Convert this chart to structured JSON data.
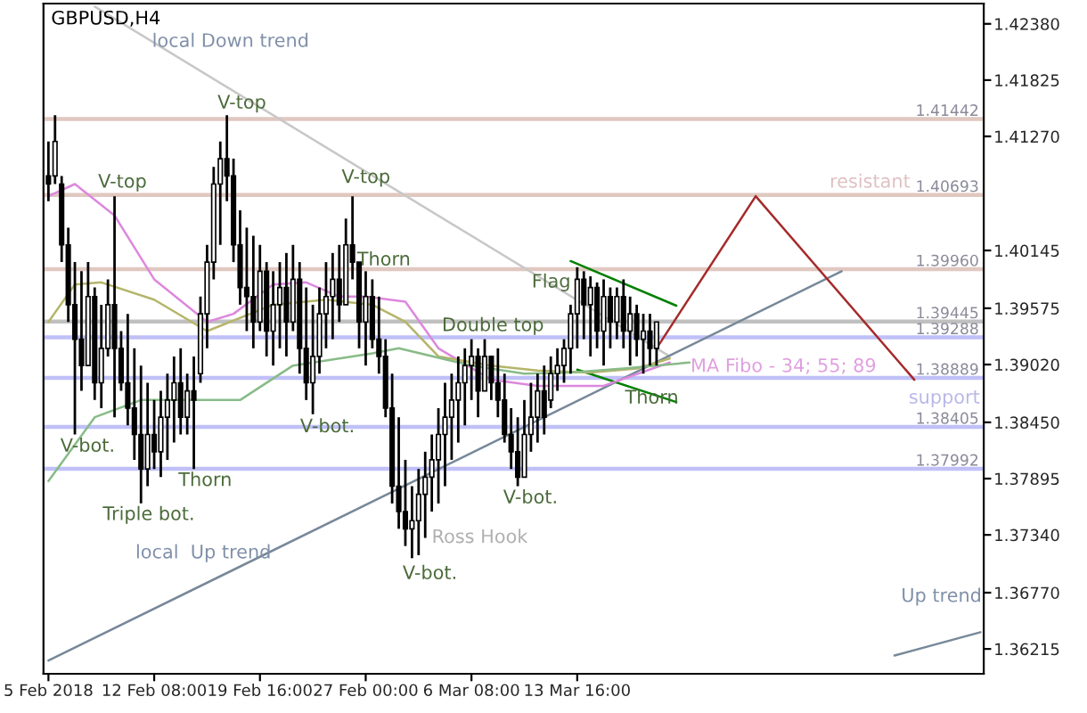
{
  "chart_data": {
    "type": "candlestick",
    "title": "GBPUSD,H4",
    "categories": [
      "5 Feb 2018",
      null,
      null,
      null,
      null,
      null,
      null,
      null,
      null,
      null,
      null,
      null,
      null,
      null,
      null,
      null,
      "12 Feb 08:00",
      null,
      null,
      null,
      null,
      null,
      null,
      null,
      null,
      null,
      null,
      null,
      null,
      null,
      null,
      null,
      "19 Feb 16:00",
      null,
      null,
      null,
      null,
      null,
      null,
      null,
      null,
      null,
      null,
      null,
      null,
      null,
      null,
      null,
      "27 Feb 00:00",
      null,
      null,
      null,
      null,
      null,
      null,
      null,
      null,
      null,
      null,
      null,
      null,
      null,
      null,
      null,
      "6 Mar 08:00",
      null,
      null,
      null,
      null,
      null,
      null,
      null,
      null,
      null,
      null,
      null,
      null,
      null,
      null,
      null,
      "13 Mar 16:00",
      null,
      null,
      null,
      null,
      null,
      null,
      null,
      null,
      null,
      null,
      null,
      null,
      null,
      null,
      null,
      null,
      null,
      null,
      null,
      null,
      null,
      null,
      null,
      null,
      null,
      null,
      null,
      null,
      null,
      null,
      null,
      null,
      null,
      null,
      null,
      null,
      null,
      null,
      null,
      null,
      null,
      null,
      null,
      null,
      null,
      null,
      null,
      null,
      null,
      null,
      null,
      null,
      null,
      null,
      null,
      null,
      null,
      null,
      null,
      null,
      null
    ],
    "ohlc": [
      [
        1.4088,
        1.4122,
        1.4063,
        1.408
      ],
      [
        1.4088,
        1.4148,
        1.408,
        1.4122
      ],
      [
        1.408,
        1.4088,
        1.4003,
        1.402
      ],
      [
        1.402,
        1.4037,
        1.3944,
        1.3961
      ],
      [
        1.3961,
        1.4003,
        1.3833,
        1.3927
      ],
      [
        1.3927,
        1.3994,
        1.3876,
        1.3901
      ],
      [
        1.3901,
        1.4003,
        1.3901,
        1.3969
      ],
      [
        1.3969,
        1.3978,
        1.3867,
        1.3884
      ],
      [
        1.3884,
        1.3961,
        1.3859,
        1.3918
      ],
      [
        1.3918,
        1.3986,
        1.391,
        1.3961
      ],
      [
        1.3961,
        1.4068,
        1.385,
        1.3918
      ],
      [
        1.3918,
        1.3935,
        1.3876,
        1.3884
      ],
      [
        1.3884,
        1.3952,
        1.3842,
        1.3859
      ],
      [
        1.3859,
        1.3918,
        1.3808,
        1.3833
      ],
      [
        1.3833,
        1.3901,
        1.3765,
        1.3799
      ],
      [
        1.3799,
        1.3884,
        1.3782,
        1.3833
      ],
      [
        1.3833,
        1.3867,
        1.3799,
        1.3816
      ],
      [
        1.3816,
        1.3876,
        1.3791,
        1.385
      ],
      [
        1.385,
        1.3893,
        1.3808,
        1.3867
      ],
      [
        1.3867,
        1.391,
        1.3825,
        1.3884
      ],
      [
        1.3884,
        1.3918,
        1.3833,
        1.385
      ],
      [
        1.385,
        1.3893,
        1.3833,
        1.3876
      ],
      [
        1.3876,
        1.391,
        1.3799,
        1.3867
      ],
      [
        1.3893,
        1.3969,
        1.3884,
        1.3952
      ],
      [
        1.3952,
        1.402,
        1.3918,
        1.4003
      ],
      [
        1.4003,
        1.4097,
        1.3986,
        1.408
      ],
      [
        1.408,
        1.4122,
        1.402,
        1.4105
      ],
      [
        1.4105,
        1.4148,
        1.4063,
        1.4088
      ],
      [
        1.4088,
        1.4105,
        1.4003,
        1.402
      ],
      [
        1.402,
        1.4054,
        1.3961,
        1.3978
      ],
      [
        1.3978,
        1.4037,
        1.3935,
        1.3969
      ],
      [
        1.3969,
        1.4029,
        1.3918,
        1.3944
      ],
      [
        1.3944,
        1.402,
        1.3935,
        1.3994
      ],
      [
        1.3994,
        1.4003,
        1.391,
        1.3935
      ],
      [
        1.3935,
        1.3994,
        1.3901,
        1.3961
      ],
      [
        1.3961,
        1.4003,
        1.3918,
        1.3978
      ],
      [
        1.3978,
        1.4012,
        1.391,
        1.3944
      ],
      [
        1.3944,
        1.402,
        1.3935,
        1.3986
      ],
      [
        1.3986,
        1.4003,
        1.3893,
        1.3918
      ],
      [
        1.3918,
        1.3978,
        1.3867,
        1.3884
      ],
      [
        1.3884,
        1.3961,
        1.3853,
        1.391
      ],
      [
        1.391,
        1.3978,
        1.3893,
        1.3952
      ],
      [
        1.3952,
        1.4003,
        1.3918,
        1.3969
      ],
      [
        1.3969,
        1.4012,
        1.3927,
        1.3986
      ],
      [
        1.3986,
        1.402,
        1.3944,
        1.3961
      ],
      [
        1.3961,
        1.4046,
        1.3961,
        1.402
      ],
      [
        1.402,
        1.4068,
        1.3986,
        1.4003
      ],
      [
        1.4003,
        1.4003,
        1.3918,
        1.3944
      ],
      [
        1.3944,
        1.3994,
        1.3901,
        1.3969
      ],
      [
        1.3969,
        1.3986,
        1.3918,
        1.3927
      ],
      [
        1.3927,
        1.3969,
        1.3893,
        1.391
      ],
      [
        1.391,
        1.3927,
        1.385,
        1.3859
      ],
      [
        1.3859,
        1.3893,
        1.3765,
        1.3782
      ],
      [
        1.3782,
        1.385,
        1.374,
        1.3757
      ],
      [
        1.3757,
        1.3808,
        1.3723,
        1.374
      ],
      [
        1.374,
        1.3782,
        1.3711,
        1.3748
      ],
      [
        1.3748,
        1.3799,
        1.3714,
        1.3774
      ],
      [
        1.3774,
        1.3816,
        1.3731,
        1.3791
      ],
      [
        1.3791,
        1.3833,
        1.3757,
        1.3808
      ],
      [
        1.3808,
        1.3859,
        1.3765,
        1.3833
      ],
      [
        1.3833,
        1.3884,
        1.3782,
        1.385
      ],
      [
        1.385,
        1.3893,
        1.3808,
        1.3867
      ],
      [
        1.3867,
        1.391,
        1.3825,
        1.3884
      ],
      [
        1.3884,
        1.3918,
        1.3842,
        1.3901
      ],
      [
        1.3901,
        1.3927,
        1.3867,
        1.391
      ],
      [
        1.391,
        1.3918,
        1.385,
        1.3876
      ],
      [
        1.3876,
        1.3927,
        1.3876,
        1.391
      ],
      [
        1.391,
        1.391,
        1.3867,
        1.3884
      ],
      [
        1.3884,
        1.3918,
        1.385,
        1.3867
      ],
      [
        1.3867,
        1.3893,
        1.3825,
        1.3833
      ],
      [
        1.3833,
        1.3859,
        1.3799,
        1.3816
      ],
      [
        1.3816,
        1.385,
        1.3782,
        1.3791
      ],
      [
        1.3791,
        1.3867,
        1.3791,
        1.3833
      ],
      [
        1.3833,
        1.3884,
        1.3816,
        1.385
      ],
      [
        1.385,
        1.3893,
        1.3825,
        1.3876
      ],
      [
        1.3876,
        1.3901,
        1.3833,
        1.385
      ],
      [
        1.3867,
        1.391,
        1.3859,
        1.3893
      ],
      [
        1.3893,
        1.3918,
        1.3876,
        1.3901
      ],
      [
        1.3901,
        1.3927,
        1.3884,
        1.3918
      ],
      [
        1.3918,
        1.3961,
        1.3893,
        1.3952
      ],
      [
        1.3952,
        1.3998,
        1.3918,
        1.3986
      ],
      [
        1.3986,
        1.3994,
        1.3927,
        1.3961
      ],
      [
        1.3961,
        1.3989,
        1.391,
        1.3978
      ],
      [
        1.3978,
        1.3983,
        1.3918,
        1.3935
      ],
      [
        1.3935,
        1.3986,
        1.3901,
        1.3969
      ],
      [
        1.3969,
        1.3978,
        1.3918,
        1.3944
      ],
      [
        1.3944,
        1.3978,
        1.3927,
        1.3969
      ],
      [
        1.3969,
        1.3986,
        1.3918,
        1.3935
      ],
      [
        1.3935,
        1.3969,
        1.3901,
        1.3952
      ],
      [
        1.3952,
        1.3961,
        1.391,
        1.3927
      ],
      [
        1.3927,
        1.3952,
        1.3893,
        1.3935
      ],
      [
        1.3935,
        1.3952,
        1.3901,
        1.3918
      ],
      [
        1.3918,
        1.3944,
        1.3901,
        1.3944
      ],
      null,
      null,
      null,
      null,
      null,
      null,
      null,
      null,
      null,
      null,
      null,
      null,
      null,
      null,
      null,
      null,
      null,
      null,
      null,
      null,
      null,
      null,
      null,
      null,
      null,
      null,
      null,
      null,
      null,
      null,
      null,
      null,
      null,
      null,
      null,
      null,
      null,
      null,
      null,
      null,
      null,
      null,
      null,
      null,
      null,
      null,
      null,
      null,
      null
    ],
    "series": [
      {
        "type": "line",
        "color": "#c8c8c8",
        "values": [
          null,
          null,
          null,
          null,
          null,
          null,
          null,
          1.4255,
          null,
          null,
          null,
          null,
          null,
          null,
          null,
          null,
          null,
          null,
          null,
          null,
          null,
          null,
          null,
          null,
          null,
          null,
          null,
          null,
          null,
          null,
          null,
          null,
          null,
          null,
          null,
          null,
          null,
          null,
          null,
          null,
          null,
          null,
          null,
          null,
          null,
          null,
          null,
          null,
          null,
          null,
          null,
          null,
          null,
          null,
          null,
          null,
          null,
          null,
          null,
          null,
          null,
          null,
          null,
          null,
          null,
          null,
          null,
          null,
          null,
          null,
          null,
          null,
          null,
          null,
          null,
          null,
          null,
          null,
          null,
          null,
          null,
          null,
          null,
          null,
          null,
          null,
          null,
          null,
          null,
          null,
          null,
          null,
          null,
          null,
          1.391,
          null,
          null,
          null,
          null,
          null,
          null,
          null,
          null,
          null,
          null,
          null,
          null,
          null,
          null,
          null,
          null,
          null,
          null,
          null,
          null,
          null,
          null,
          null,
          null,
          null,
          null,
          null,
          null,
          null,
          null,
          null,
          null,
          null,
          null,
          null,
          null,
          null,
          null,
          null,
          null,
          null,
          null,
          null,
          null,
          null,
          null,
          null
        ]
      },
      {
        "type": "line",
        "color": "#778899",
        "values": [
          1.361,
          null,
          null,
          null,
          null,
          null,
          null,
          null,
          null,
          null,
          null,
          null,
          null,
          null,
          null,
          null,
          null,
          null,
          null,
          null,
          null,
          null,
          null,
          null,
          null,
          null,
          null,
          null,
          null,
          null,
          null,
          null,
          null,
          null,
          null,
          null,
          null,
          null,
          null,
          null,
          null,
          null,
          null,
          null,
          null,
          null,
          null,
          null,
          null,
          null,
          null,
          null,
          null,
          null,
          null,
          null,
          null,
          null,
          null,
          null,
          null,
          null,
          null,
          null,
          null,
          null,
          null,
          null,
          null,
          null,
          null,
          null,
          null,
          null,
          null,
          null,
          null,
          null,
          null,
          null,
          null,
          null,
          null,
          null,
          null,
          null,
          null,
          null,
          null,
          null,
          null,
          null,
          null,
          null,
          null,
          null,
          null,
          null,
          null,
          null,
          null,
          null,
          null,
          null,
          null,
          null,
          null,
          null,
          null,
          null,
          null,
          null,
          null,
          null,
          null,
          null,
          null,
          null,
          null,
          null,
          1.3994,
          null,
          null,
          null,
          null,
          null,
          null,
          null,
          null,
          null,
          null,
          null,
          null,
          null,
          null,
          null,
          null,
          null,
          null,
          null,
          null,
          null
        ]
      },
      {
        "type": "line",
        "color": "#778899",
        "values": [
          null,
          null,
          null,
          null,
          null,
          null,
          null,
          null,
          null,
          null,
          null,
          null,
          null,
          null,
          null,
          null,
          null,
          null,
          null,
          null,
          null,
          null,
          null,
          null,
          null,
          null,
          null,
          null,
          null,
          null,
          null,
          null,
          null,
          null,
          null,
          null,
          null,
          null,
          null,
          null,
          null,
          null,
          null,
          null,
          null,
          null,
          null,
          null,
          null,
          null,
          null,
          null,
          null,
          null,
          null,
          null,
          null,
          null,
          null,
          null,
          null,
          null,
          null,
          null,
          null,
          null,
          null,
          null,
          null,
          null,
          null,
          null,
          null,
          null,
          null,
          null,
          null,
          null,
          null,
          null,
          null,
          null,
          null,
          null,
          null,
          null,
          null,
          null,
          null,
          null,
          null,
          null,
          null,
          null,
          null,
          null,
          null,
          null,
          null,
          null,
          null,
          null,
          null,
          null,
          null,
          null,
          null,
          null,
          null,
          null,
          null,
          null,
          null,
          null,
          null,
          null,
          null,
          null,
          null,
          null,
          null,
          null,
          null,
          null,
          null,
          null,
          null,
          null,
          1.3615,
          null,
          null,
          null,
          null,
          null,
          null,
          null,
          null,
          null,
          null,
          null,
          null,
          1.3638
        ]
      },
      {
        "type": "line",
        "color": "#008000",
        "values": [
          null,
          null,
          null,
          null,
          null,
          null,
          null,
          null,
          null,
          null,
          null,
          null,
          null,
          null,
          null,
          null,
          null,
          null,
          null,
          null,
          null,
          null,
          null,
          null,
          null,
          null,
          null,
          null,
          null,
          null,
          null,
          null,
          null,
          null,
          null,
          null,
          null,
          null,
          null,
          null,
          null,
          null,
          null,
          null,
          null,
          null,
          null,
          null,
          null,
          null,
          null,
          null,
          null,
          null,
          null,
          null,
          null,
          null,
          null,
          null,
          null,
          null,
          null,
          null,
          null,
          null,
          null,
          null,
          null,
          null,
          null,
          null,
          null,
          null,
          null,
          null,
          null,
          null,
          null,
          1.4004,
          null,
          null,
          null,
          null,
          null,
          null,
          null,
          null,
          null,
          null,
          null,
          null,
          null,
          null,
          null,
          1.396,
          null,
          null,
          null,
          null,
          null,
          null,
          null,
          null,
          null,
          null,
          null,
          null,
          null,
          null,
          null,
          null,
          null,
          null,
          null,
          null,
          null,
          null,
          null,
          null,
          null,
          null,
          null,
          null,
          null,
          null,
          null,
          null,
          null,
          null,
          null,
          null,
          null,
          null,
          null,
          null,
          null,
          null,
          null,
          null,
          null,
          null
        ]
      },
      {
        "type": "line",
        "color": "#008000",
        "values": [
          null,
          null,
          null,
          null,
          null,
          null,
          null,
          null,
          null,
          null,
          null,
          null,
          null,
          null,
          null,
          null,
          null,
          null,
          null,
          null,
          null,
          null,
          null,
          null,
          null,
          null,
          null,
          null,
          null,
          null,
          null,
          null,
          null,
          null,
          null,
          null,
          null,
          null,
          null,
          null,
          null,
          null,
          null,
          null,
          null,
          null,
          null,
          null,
          null,
          null,
          null,
          null,
          null,
          null,
          null,
          null,
          null,
          null,
          null,
          null,
          null,
          null,
          null,
          null,
          null,
          null,
          null,
          null,
          null,
          null,
          null,
          null,
          null,
          null,
          null,
          null,
          null,
          null,
          null,
          null,
          1.3897,
          null,
          null,
          null,
          null,
          null,
          null,
          null,
          null,
          null,
          null,
          null,
          null,
          null,
          null,
          1.3865,
          null,
          null,
          null,
          null,
          null,
          null,
          null,
          null,
          null,
          null,
          null,
          null,
          null,
          null,
          null,
          null,
          null,
          null,
          null,
          null,
          null,
          null,
          null,
          null,
          null,
          null,
          null,
          null,
          null,
          null,
          null,
          null,
          null,
          null,
          null,
          null,
          null,
          null,
          null,
          null,
          null,
          null,
          null,
          null,
          null,
          null
        ]
      },
      {
        "type": "line",
        "color": "#a52a2a",
        "values": [
          null,
          null,
          null,
          null,
          null,
          null,
          null,
          null,
          null,
          null,
          null,
          null,
          null,
          null,
          null,
          null,
          null,
          null,
          null,
          null,
          null,
          null,
          null,
          null,
          null,
          null,
          null,
          null,
          null,
          null,
          null,
          null,
          null,
          null,
          null,
          null,
          null,
          null,
          null,
          null,
          null,
          null,
          null,
          null,
          null,
          null,
          null,
          null,
          null,
          null,
          null,
          null,
          null,
          null,
          null,
          null,
          null,
          null,
          null,
          null,
          null,
          null,
          null,
          null,
          null,
          null,
          null,
          null,
          null,
          null,
          null,
          null,
          null,
          null,
          null,
          null,
          null,
          null,
          null,
          null,
          null,
          null,
          null,
          null,
          null,
          null,
          null,
          null,
          null,
          null,
          null,
          null,
          1.3918,
          null,
          null,
          null,
          null,
          null,
          null,
          null,
          null,
          null,
          null,
          null,
          null,
          null,
          null,
          1.4068,
          null,
          null,
          null,
          null,
          null,
          null,
          null,
          null,
          null,
          null,
          null,
          null,
          null,
          null,
          null,
          null,
          null,
          null,
          null,
          null,
          null,
          null,
          null,
          1.3887,
          null,
          null,
          null,
          null,
          null,
          null,
          null,
          null,
          null,
          null
        ]
      },
      {
        "type": "line",
        "color": "#dd88dd",
        "values": [
          1.4068,
          null,
          null,
          null,
          1.408,
          null,
          null,
          null,
          null,
          null,
          1.4049,
          null,
          null,
          null,
          null,
          null,
          1.3986,
          null,
          null,
          null,
          null,
          null,
          null,
          null,
          1.3944,
          null,
          null,
          null,
          1.3952,
          null,
          null,
          null,
          null,
          null,
          1.3981,
          null,
          null,
          null,
          null,
          1.3983,
          null,
          null,
          null,
          null,
          1.3969,
          null,
          null,
          null,
          1.3969,
          null,
          null,
          null,
          null,
          null,
          1.3964,
          null,
          null,
          null,
          null,
          1.3918,
          null,
          null,
          null,
          null,
          null,
          null,
          null,
          1.3887,
          null,
          null,
          null,
          null,
          null,
          null,
          1.3881,
          null,
          null,
          null,
          null,
          null,
          null,
          null,
          null,
          null,
          1.3881,
          null,
          null,
          null,
          null,
          null,
          null,
          null,
          null,
          null,
          1.3904,
          null,
          null,
          null,
          null,
          null,
          null,
          null,
          null,
          null,
          null,
          null,
          null,
          null,
          null,
          null,
          null,
          null,
          null,
          null,
          null,
          null,
          null,
          null,
          null,
          null,
          null,
          null,
          null,
          null,
          null,
          null,
          null,
          null,
          null,
          null,
          null,
          null,
          null,
          null,
          null,
          null,
          null,
          null,
          null,
          null,
          null,
          null
        ]
      },
      {
        "type": "line",
        "color": "#b5b56a",
        "values": [
          1.3944,
          null,
          null,
          null,
          1.3981,
          null,
          null,
          null,
          1.3983,
          null,
          null,
          null,
          null,
          null,
          null,
          null,
          1.3966,
          null,
          null,
          null,
          null,
          null,
          null,
          null,
          1.3935,
          null,
          null,
          null,
          null,
          null,
          null,
          null,
          null,
          null,
          1.3961,
          null,
          null,
          null,
          null,
          null,
          null,
          null,
          1.3966,
          null,
          null,
          null,
          null,
          null,
          null,
          1.3961,
          null,
          null,
          null,
          null,
          1.3944,
          null,
          null,
          null,
          null,
          1.391,
          null,
          null,
          null,
          null,
          null,
          null,
          null,
          1.3901,
          null,
          null,
          null,
          null,
          null,
          null,
          1.3896,
          null,
          null,
          null,
          null,
          null,
          null,
          null,
          1.3894,
          null,
          null,
          null,
          null,
          null,
          null,
          1.3898,
          null,
          null,
          null,
          null,
          1.3908,
          null,
          null,
          null,
          null,
          null,
          null,
          null,
          null,
          null,
          null,
          null,
          null,
          null,
          null,
          null,
          null,
          null,
          null,
          null,
          null,
          null,
          null,
          null,
          null,
          null,
          null,
          null,
          null,
          null,
          null,
          null,
          null,
          null,
          null,
          null,
          null,
          null,
          null,
          null,
          null,
          null,
          null,
          null,
          null,
          null,
          null,
          null
        ]
      },
      {
        "type": "line",
        "color": "#88bb88",
        "values": [
          1.3787,
          null,
          null,
          null,
          null,
          null,
          null,
          1.385,
          null,
          null,
          null,
          null,
          null,
          null,
          1.3867,
          null,
          null,
          null,
          null,
          null,
          null,
          null,
          null,
          null,
          null,
          null,
          null,
          null,
          null,
          1.3867,
          null,
          null,
          null,
          null,
          null,
          null,
          null,
          1.3901,
          null,
          null,
          null,
          null,
          null,
          null,
          null,
          null,
          null,
          null,
          null,
          1.3913,
          null,
          null,
          null,
          1.3918,
          null,
          null,
          null,
          null,
          null,
          null,
          null,
          null,
          null,
          null,
          1.3901,
          null,
          null,
          null,
          null,
          null,
          null,
          null,
          1.3893,
          null,
          null,
          null,
          null,
          null,
          null,
          1.3894,
          null,
          null,
          null,
          null,
          null,
          null,
          null,
          1.3898,
          null,
          null,
          null,
          null,
          null,
          null,
          null,
          null,
          null,
          1.3904,
          null,
          null,
          null,
          null,
          null,
          null,
          null,
          null,
          null,
          null,
          null,
          null,
          null,
          null,
          null,
          null,
          null,
          null,
          null,
          null,
          null,
          null,
          null,
          null,
          null,
          null,
          null,
          null,
          null,
          null,
          null,
          null,
          null,
          null,
          null,
          null,
          null,
          null,
          null,
          null,
          null,
          null,
          null,
          null
        ]
      }
    ],
    "ref_lines": [
      {
        "axis": "y",
        "value": 1.41442,
        "label": "1.41442",
        "color": "#e0c8c0"
      },
      {
        "axis": "y",
        "value": 1.40693,
        "label": "1.40693",
        "color": "#e0c8c0"
      },
      {
        "axis": "y",
        "value": 1.3996,
        "label": "1.39960",
        "color": "#e0c8c0"
      },
      {
        "axis": "y",
        "value": 1.39445,
        "label": "1.39445",
        "color": "#c0c0c0"
      },
      {
        "axis": "y",
        "value": 1.39288,
        "label": "1.39288",
        "color": "#c0c0f8"
      },
      {
        "axis": "y",
        "value": 1.38889,
        "label": "1.38889",
        "color": "#c0c0f8"
      },
      {
        "axis": "y",
        "value": 1.38405,
        "label": "1.38405",
        "color": "#c0c0f8"
      },
      {
        "axis": "y",
        "value": 1.37992,
        "label": "1.37992",
        "color": "#c0c0f8"
      }
    ],
    "annotations": [
      "local Down trend",
      "V-top",
      "V-top",
      "V-top",
      "Thorn",
      "Flag",
      "Double top",
      "V-bot.",
      "Thorn",
      "Triple bot.",
      "V-bot.",
      "local  Up trend",
      "V-bot.",
      "Ross Hook",
      "V-bot.",
      "Thorn",
      "MA Fibo - 34; 55; 89",
      "support",
      "resistant",
      "Up trend"
    ],
    "ylim": [
      1.3597,
      1.4258
    ],
    "yticks": [
      {
        "value": 1.4238,
        "label": "1.42380"
      },
      {
        "value": 1.41825,
        "label": "1.41825"
      },
      {
        "value": 1.4127,
        "label": "1.41270"
      },
      {
        "value": 1.40145,
        "label": "1.40145"
      },
      {
        "value": 1.39575,
        "label": "1.39575"
      },
      {
        "value": 1.3902,
        "label": "1.39020"
      },
      {
        "value": 1.3845,
        "label": "1.38450"
      },
      {
        "value": 1.37895,
        "label": "1.37895"
      },
      {
        "value": 1.3734,
        "label": "1.37340"
      },
      {
        "value": 1.3677,
        "label": "1.36770"
      },
      {
        "value": 1.36215,
        "label": "1.36215"
      }
    ],
    "grid": false,
    "legend": false
  }
}
